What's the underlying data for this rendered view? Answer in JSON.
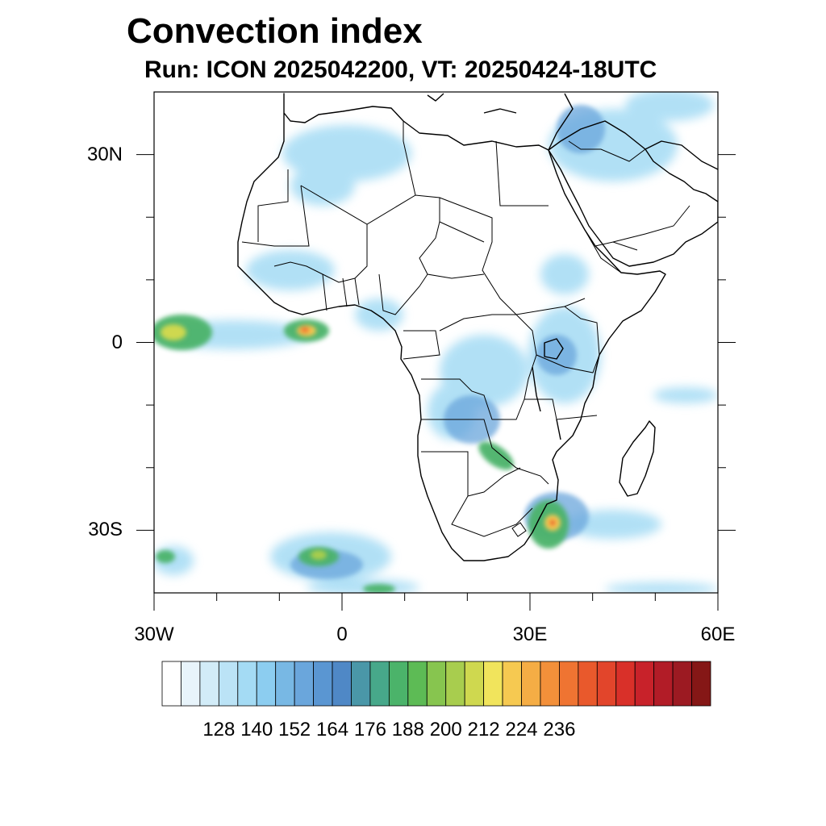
{
  "title": "Convection index",
  "subtitle": "Run: ICON 2025042200,  VT: 20250424-18UTC",
  "map": {
    "region": "Africa",
    "lon_range": [
      -30,
      60
    ],
    "lat_range": [
      -40,
      40
    ],
    "x_ticks": [
      {
        "lon": -30,
        "label": "30W"
      },
      {
        "lon": 0,
        "label": "0"
      },
      {
        "lon": 30,
        "label": "30E"
      },
      {
        "lon": 60,
        "label": "60E"
      }
    ],
    "y_ticks": [
      {
        "lat": 30,
        "label": "30N"
      },
      {
        "lat": 0,
        "label": "0"
      },
      {
        "lat": -30,
        "label": "30S"
      }
    ],
    "minor_x_ticks": [
      -20,
      -10,
      10,
      20,
      40,
      50
    ],
    "minor_y_ticks": [
      20,
      10,
      -10,
      -20
    ],
    "convection_areas": [
      {
        "name": "Gulf of Guinea / equatorial Atlantic band",
        "level": "high",
        "max_value": 212
      },
      {
        "name": "South-east Africa (Mozambique / KwaZulu-Natal)",
        "level": "high",
        "max_value": 212
      },
      {
        "name": "South Atlantic frontal band",
        "level": "medium",
        "max_value": 188
      },
      {
        "name": "Southern DR Congo / Zambia band",
        "level": "medium",
        "max_value": 176
      },
      {
        "name": "Lake Victoria / East Africa",
        "level": "low",
        "max_value": 152
      },
      {
        "name": "Eastern Mediterranean / Middle East",
        "level": "low",
        "max_value": 152
      },
      {
        "name": "West Africa (Sahel)",
        "level": "low",
        "max_value": 140
      }
    ]
  },
  "colorbar": {
    "colors": [
      "#ffffff",
      "#e8f4fb",
      "#d2ecf8",
      "#bbe3f6",
      "#a4dbf4",
      "#8ccdf0",
      "#78b8e4",
      "#6aa6dc",
      "#5a96d2",
      "#4f88c6",
      "#4a97a8",
      "#47a88a",
      "#4bb36a",
      "#5dbb55",
      "#87c54f",
      "#a8cd4e",
      "#cfd84f",
      "#f1e45c",
      "#f6c951",
      "#f5ad45",
      "#f3903a",
      "#ef7432",
      "#e9592c",
      "#e2452b",
      "#d93029",
      "#c8222a",
      "#b21c27",
      "#9c1a22",
      "#851716"
    ],
    "tick_labels": [
      "128",
      "140",
      "152",
      "164",
      "176",
      "188",
      "200",
      "212",
      "224",
      "236"
    ]
  }
}
